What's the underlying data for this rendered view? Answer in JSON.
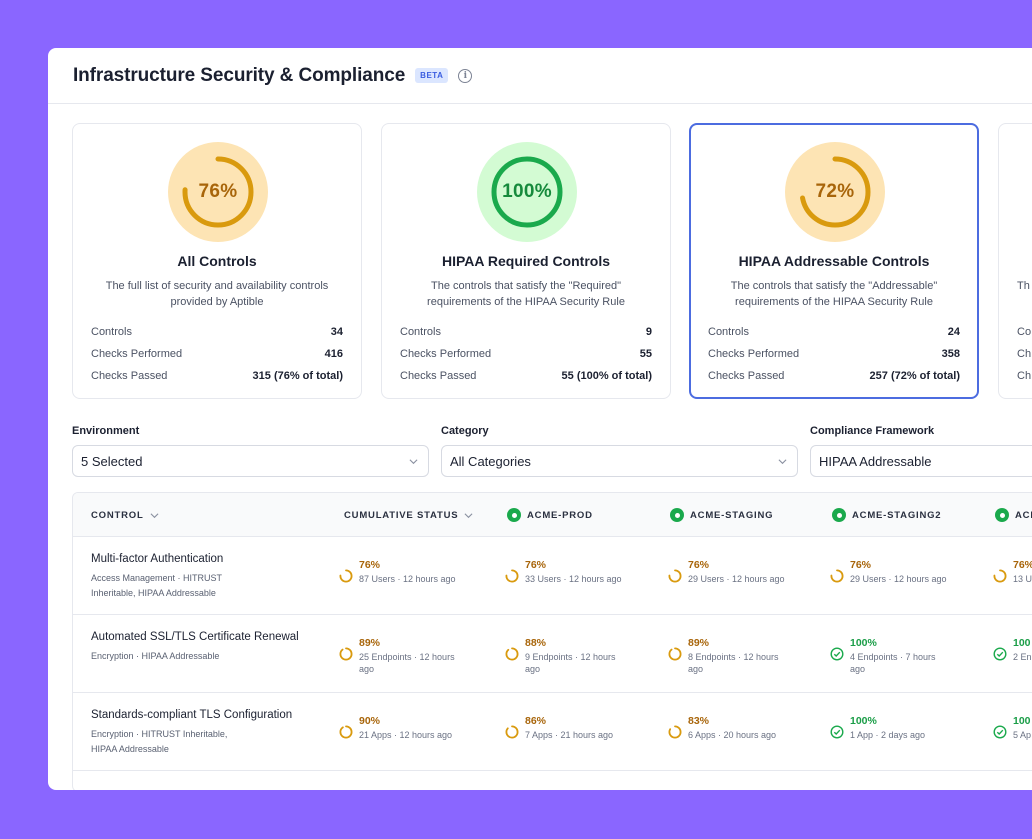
{
  "header": {
    "title": "Infrastructure Security & Compliance",
    "badge": "BETA",
    "info_icon": "info-icon"
  },
  "cards": [
    {
      "percent": "76%",
      "level": 0.76,
      "status": "warning",
      "title": "All Controls",
      "description": "The full list of security and availability controls provided by Aptible",
      "stats": [
        {
          "label": "Controls",
          "value": "34"
        },
        {
          "label": "Checks Performed",
          "value": "416"
        },
        {
          "label": "Checks Passed",
          "value": "315 (76% of total)"
        }
      ]
    },
    {
      "percent": "100%",
      "level": 1.0,
      "status": "success",
      "title": "HIPAA Required Controls",
      "description": "The controls that satisfy the \"Required\" requirements of the HIPAA Security Rule",
      "stats": [
        {
          "label": "Controls",
          "value": "9"
        },
        {
          "label": "Checks Performed",
          "value": "55"
        },
        {
          "label": "Checks Passed",
          "value": "55 (100% of total)"
        }
      ]
    },
    {
      "percent": "72%",
      "level": 0.72,
      "status": "warning",
      "title": "HIPAA Addressable Controls",
      "description": "The controls that satisfy the \"Addressable\" requirements of the HIPAA Security Rule",
      "stats": [
        {
          "label": "Controls",
          "value": "24"
        },
        {
          "label": "Checks Performed",
          "value": "358"
        },
        {
          "label": "Checks Passed",
          "value": "257 (72% of total)"
        }
      ]
    },
    {
      "partial_desc": "Th",
      "stats_partial": [
        "Co",
        "Ch",
        "Ch"
      ]
    }
  ],
  "filters": [
    {
      "label": "Environment",
      "value": "5 Selected"
    },
    {
      "label": "Category",
      "value": "All Categories"
    },
    {
      "label": "Compliance Framework",
      "value": "HIPAA Addressable"
    }
  ],
  "table": {
    "columns": [
      "CONTROL",
      "CUMULATIVE STATUS",
      "ACME-PROD",
      "ACME-STAGING",
      "ACME-STAGING2",
      "ACI"
    ],
    "rows": [
      {
        "name": "Multi-factor Authentication",
        "meta": [
          "Access Management · HITRUST",
          "Inheritable, HIPAA Addressable"
        ],
        "cells": [
          {
            "pct": "76%",
            "status": "warning",
            "level": 0.76,
            "sub": "87 Users · 12 hours ago"
          },
          {
            "pct": "76%",
            "status": "warning",
            "level": 0.76,
            "sub": "33 Users · 12 hours ago"
          },
          {
            "pct": "76%",
            "status": "warning",
            "level": 0.76,
            "sub": "29 Users · 12 hours ago"
          },
          {
            "pct": "76%",
            "status": "warning",
            "level": 0.76,
            "sub": "29 Users · 12 hours ago"
          },
          {
            "pct": "76%",
            "status": "warning",
            "level": 0.76,
            "sub": "13 U hou"
          }
        ]
      },
      {
        "name": "Automated SSL/TLS Certificate Renewal",
        "meta": [
          "Encryption · HIPAA Addressable"
        ],
        "cells": [
          {
            "pct": "89%",
            "status": "warning",
            "level": 0.89,
            "sub": "25 Endpoints · 12 hours ago"
          },
          {
            "pct": "88%",
            "status": "warning",
            "level": 0.88,
            "sub": "9 Endpoints · 12 hours ago"
          },
          {
            "pct": "89%",
            "status": "warning",
            "level": 0.89,
            "sub": "8 Endpoints · 12 hours ago"
          },
          {
            "pct": "100%",
            "status": "success",
            "level": 1.0,
            "sub": "4 Endpoints · 7 hours ago"
          },
          {
            "pct": "100",
            "status": "success",
            "level": 1.0,
            "sub": "2 En hou"
          }
        ]
      },
      {
        "name": "Standards-compliant TLS Configuration",
        "meta": [
          "Encryption · HITRUST Inheritable,",
          "HIPAA Addressable"
        ],
        "cells": [
          {
            "pct": "90%",
            "status": "warning",
            "level": 0.9,
            "sub": "21 Apps · 12 hours ago"
          },
          {
            "pct": "86%",
            "status": "warning",
            "level": 0.86,
            "sub": "7 Apps · 21 hours ago"
          },
          {
            "pct": "83%",
            "status": "warning",
            "level": 0.83,
            "sub": "6 Apps · 20 hours ago"
          },
          {
            "pct": "100%",
            "status": "success",
            "level": 1.0,
            "sub": "1 App · 2 days ago"
          },
          {
            "pct": "100",
            "status": "success",
            "level": 1.0,
            "sub": "5 Ap ago"
          }
        ]
      }
    ]
  },
  "colors": {
    "background": "#8a66ff",
    "warning": "#d99a0e",
    "warning_bg": "#fde4b4",
    "success": "#1aa94c",
    "success_bg": "#d3fbd3",
    "selected_border": "#4c6ce0"
  }
}
